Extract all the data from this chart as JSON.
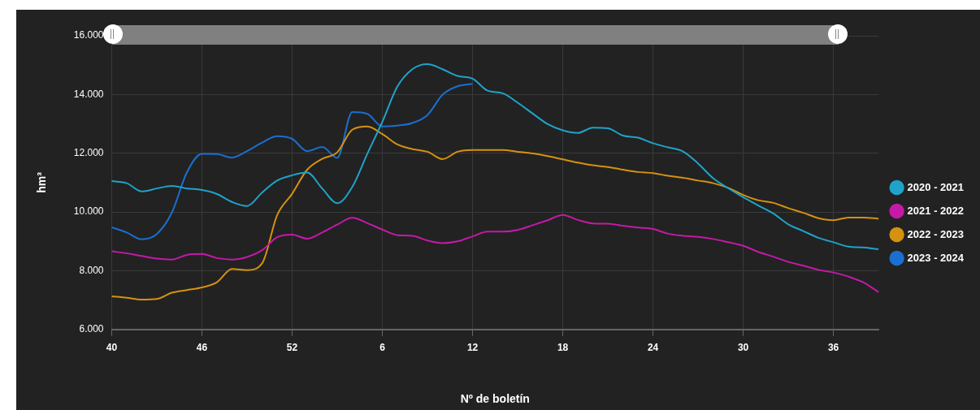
{
  "chart_data": {
    "type": "line",
    "xlabel": "Nº de boletín",
    "ylabel": "hm³",
    "categories": [
      "40",
      null,
      null,
      null,
      null,
      null,
      "46",
      null,
      null,
      null,
      null,
      null,
      "52",
      null,
      null,
      null,
      null,
      null,
      "6",
      null,
      null,
      null,
      null,
      null,
      "12",
      null,
      null,
      null,
      null,
      null,
      "18",
      null,
      null,
      null,
      null,
      null,
      "24",
      null,
      null,
      null,
      null,
      null,
      "30",
      null,
      null,
      null,
      null,
      null,
      "36",
      null,
      null,
      null
    ],
    "ylim": [
      6000,
      16000
    ],
    "yticks": [
      {
        "value": 6000,
        "label": "6.000"
      },
      {
        "value": 8000,
        "label": "8.000"
      },
      {
        "value": 10000,
        "label": "10.000"
      },
      {
        "value": 12000,
        "label": "12.000"
      },
      {
        "value": 14000,
        "label": "14.000"
      },
      {
        "value": 16000,
        "label": "16.000"
      }
    ],
    "grid": true,
    "legend": "right",
    "marker": "none",
    "line_style": "solid",
    "series": [
      {
        "name": "2020 - 2021",
        "color": "#1fa3c9",
        "values": [
          11050,
          10980,
          10700,
          10800,
          10890,
          10800,
          10750,
          10610,
          10340,
          10200,
          10660,
          11070,
          11250,
          11340,
          10800,
          10300,
          10850,
          11980,
          13070,
          14270,
          14860,
          15030,
          14860,
          14630,
          14540,
          14130,
          14040,
          13720,
          13350,
          12990,
          12780,
          12690,
          12870,
          12850,
          12600,
          12530,
          12340,
          12200,
          12060,
          11650,
          11150,
          10810,
          10500,
          10220,
          9950,
          9580,
          9350,
          9120,
          8970,
          8820,
          8790,
          8730
        ]
      },
      {
        "name": "2021 - 2022",
        "color": "#c41aa7",
        "values": [
          8660,
          8590,
          8500,
          8410,
          8380,
          8540,
          8570,
          8430,
          8380,
          8470,
          8700,
          9140,
          9230,
          9090,
          9300,
          9570,
          9800,
          9620,
          9400,
          9210,
          9190,
          9030,
          8940,
          9000,
          9170,
          9330,
          9330,
          9390,
          9550,
          9720,
          9900,
          9730,
          9610,
          9600,
          9530,
          9470,
          9420,
          9260,
          9190,
          9150,
          9080,
          8970,
          8850,
          8640,
          8480,
          8300,
          8170,
          8030,
          7940,
          7800,
          7600,
          7270
        ]
      },
      {
        "name": "2022 - 2023",
        "color": "#d4920f",
        "values": [
          7130,
          7080,
          7020,
          7040,
          7250,
          7340,
          7430,
          7610,
          8060,
          8020,
          8250,
          9890,
          10620,
          11440,
          11810,
          12030,
          12800,
          12910,
          12650,
          12300,
          12140,
          12050,
          11800,
          12050,
          12110,
          12110,
          12110,
          12050,
          11990,
          11900,
          11790,
          11680,
          11590,
          11530,
          11440,
          11360,
          11320,
          11230,
          11160,
          11070,
          10980,
          10820,
          10580,
          10400,
          10310,
          10130,
          9970,
          9790,
          9720,
          9810,
          9810,
          9770
        ]
      },
      {
        "name": "2023 - 2024",
        "color": "#1a6fd0",
        "values": [
          9480,
          9300,
          9070,
          9250,
          9980,
          11350,
          11980,
          11970,
          11850,
          12070,
          12360,
          12580,
          12490,
          12070,
          12210,
          11840,
          13400,
          13340,
          12910,
          12940,
          13030,
          13300,
          13990,
          14280,
          14360,
          null,
          null,
          null,
          null,
          null,
          null,
          null,
          null,
          null,
          null,
          null,
          null,
          null,
          null,
          null,
          null,
          null,
          null,
          null,
          null,
          null,
          null,
          null,
          null,
          null,
          null,
          null
        ]
      }
    ]
  }
}
